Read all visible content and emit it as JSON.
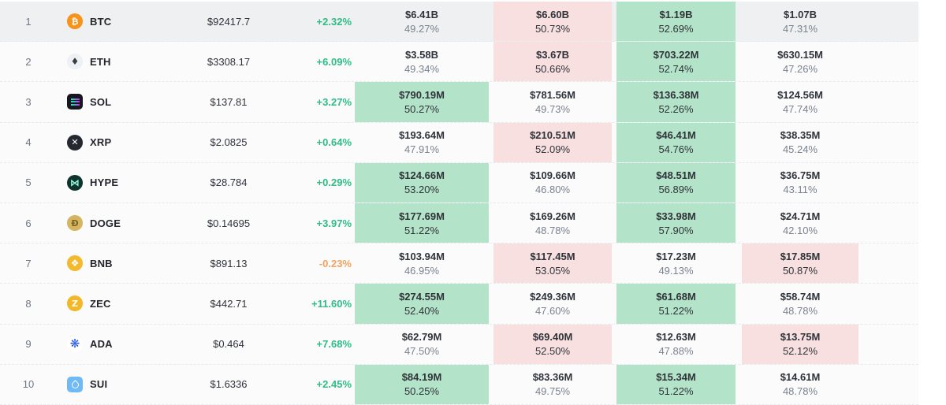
{
  "colors": {
    "green_highlight": "#b3e3c8",
    "red_highlight": "#f8dfe0",
    "row_selected": "#eef0f2",
    "up": "#2ebd85",
    "down": "#f0a35f"
  },
  "table": {
    "rows": [
      {
        "rank": "1",
        "symbol": "BTC",
        "price": "$92417.7",
        "change": "+2.32%",
        "selected": true,
        "icon": {
          "name": "btc-icon",
          "glyph": "₿",
          "bg": "#f7931a",
          "fg": "#ffffff",
          "shape": "circle"
        },
        "cells": [
          {
            "value": "$6.41B",
            "pct": "49.27%",
            "highlight": "none"
          },
          {
            "value": "$6.60B",
            "pct": "50.73%",
            "highlight": "red"
          },
          {
            "value": "$1.19B",
            "pct": "52.69%",
            "highlight": "green"
          },
          {
            "value": "$1.07B",
            "pct": "47.31%",
            "highlight": "none"
          }
        ]
      },
      {
        "rank": "2",
        "symbol": "ETH",
        "price": "$3308.17",
        "change": "+6.09%",
        "selected": false,
        "icon": {
          "name": "eth-icon",
          "glyph": "♦",
          "bg": "#edf0f4",
          "fg": "#3c3c3d",
          "shape": "circle"
        },
        "cells": [
          {
            "value": "$3.58B",
            "pct": "49.34%",
            "highlight": "none"
          },
          {
            "value": "$3.67B",
            "pct": "50.66%",
            "highlight": "red"
          },
          {
            "value": "$703.22M",
            "pct": "52.74%",
            "highlight": "green"
          },
          {
            "value": "$630.15M",
            "pct": "47.26%",
            "highlight": "none"
          }
        ]
      },
      {
        "rank": "3",
        "symbol": "SOL",
        "price": "$137.81",
        "change": "+3.27%",
        "selected": false,
        "icon": {
          "name": "sol-icon",
          "glyph": "",
          "bg": "#17171f",
          "fg": "#ffffff",
          "shape": "square"
        },
        "cells": [
          {
            "value": "$790.19M",
            "pct": "50.27%",
            "highlight": "green"
          },
          {
            "value": "$781.56M",
            "pct": "49.73%",
            "highlight": "none"
          },
          {
            "value": "$136.38M",
            "pct": "52.26%",
            "highlight": "green"
          },
          {
            "value": "$124.56M",
            "pct": "47.74%",
            "highlight": "none"
          }
        ]
      },
      {
        "rank": "4",
        "symbol": "XRP",
        "price": "$2.0825",
        "change": "+0.64%",
        "selected": false,
        "icon": {
          "name": "xrp-icon",
          "glyph": "✕",
          "bg": "#23292f",
          "fg": "#ffffff",
          "shape": "circle"
        },
        "cells": [
          {
            "value": "$193.64M",
            "pct": "47.91%",
            "highlight": "none"
          },
          {
            "value": "$210.51M",
            "pct": "52.09%",
            "highlight": "red"
          },
          {
            "value": "$46.41M",
            "pct": "54.76%",
            "highlight": "green"
          },
          {
            "value": "$38.35M",
            "pct": "45.24%",
            "highlight": "none"
          }
        ]
      },
      {
        "rank": "5",
        "symbol": "HYPE",
        "price": "$28.784",
        "change": "+0.29%",
        "selected": false,
        "icon": {
          "name": "hype-icon",
          "glyph": "⋈",
          "bg": "#0e342c",
          "fg": "#98fce4",
          "shape": "circle"
        },
        "cells": [
          {
            "value": "$124.66M",
            "pct": "53.20%",
            "highlight": "green"
          },
          {
            "value": "$109.66M",
            "pct": "46.80%",
            "highlight": "none"
          },
          {
            "value": "$48.51M",
            "pct": "56.89%",
            "highlight": "green"
          },
          {
            "value": "$36.75M",
            "pct": "43.11%",
            "highlight": "none"
          }
        ]
      },
      {
        "rank": "6",
        "symbol": "DOGE",
        "price": "$0.14695",
        "change": "+3.97%",
        "selected": false,
        "icon": {
          "name": "doge-icon",
          "glyph": "Ð",
          "bg": "#d5b55f",
          "fg": "#7d6226",
          "shape": "circle"
        },
        "cells": [
          {
            "value": "$177.69M",
            "pct": "51.22%",
            "highlight": "green"
          },
          {
            "value": "$169.26M",
            "pct": "48.78%",
            "highlight": "none"
          },
          {
            "value": "$33.98M",
            "pct": "57.90%",
            "highlight": "green"
          },
          {
            "value": "$24.71M",
            "pct": "42.10%",
            "highlight": "none"
          }
        ]
      },
      {
        "rank": "7",
        "symbol": "BNB",
        "price": "$891.13",
        "change": "-0.23%",
        "selected": false,
        "icon": {
          "name": "bnb-icon",
          "glyph": "❖",
          "bg": "#f3ba2f",
          "fg": "#ffffff",
          "shape": "circle"
        },
        "cells": [
          {
            "value": "$103.94M",
            "pct": "46.95%",
            "highlight": "none"
          },
          {
            "value": "$117.45M",
            "pct": "53.05%",
            "highlight": "red"
          },
          {
            "value": "$17.23M",
            "pct": "49.13%",
            "highlight": "none"
          },
          {
            "value": "$17.85M",
            "pct": "50.87%",
            "highlight": "red"
          }
        ]
      },
      {
        "rank": "8",
        "symbol": "ZEC",
        "price": "$442.71",
        "change": "+11.60%",
        "selected": false,
        "icon": {
          "name": "zec-icon",
          "glyph": "Z",
          "bg": "#f4b728",
          "fg": "#ffffff",
          "shape": "circle"
        },
        "cells": [
          {
            "value": "$274.55M",
            "pct": "52.40%",
            "highlight": "green"
          },
          {
            "value": "$249.36M",
            "pct": "47.60%",
            "highlight": "none"
          },
          {
            "value": "$61.68M",
            "pct": "51.22%",
            "highlight": "green"
          },
          {
            "value": "$58.74M",
            "pct": "48.78%",
            "highlight": "none"
          }
        ]
      },
      {
        "rank": "9",
        "symbol": "ADA",
        "price": "$0.464",
        "change": "+7.68%",
        "selected": false,
        "icon": {
          "name": "ada-icon",
          "glyph": "❋",
          "bg": "#ffffff",
          "fg": "#2257e7",
          "shape": "circle"
        },
        "cells": [
          {
            "value": "$62.79M",
            "pct": "47.50%",
            "highlight": "none"
          },
          {
            "value": "$69.40M",
            "pct": "52.50%",
            "highlight": "red"
          },
          {
            "value": "$12.63M",
            "pct": "47.88%",
            "highlight": "none"
          },
          {
            "value": "$13.75M",
            "pct": "52.12%",
            "highlight": "red"
          }
        ]
      },
      {
        "rank": "10",
        "symbol": "SUI",
        "price": "$1.6336",
        "change": "+2.45%",
        "selected": false,
        "icon": {
          "name": "sui-icon",
          "glyph": "",
          "bg": "#6fb9f5",
          "fg": "#ffffff",
          "shape": "square"
        },
        "cells": [
          {
            "value": "$84.19M",
            "pct": "50.25%",
            "highlight": "green"
          },
          {
            "value": "$83.36M",
            "pct": "49.75%",
            "highlight": "none"
          },
          {
            "value": "$15.34M",
            "pct": "51.22%",
            "highlight": "green"
          },
          {
            "value": "$14.61M",
            "pct": "48.78%",
            "highlight": "none"
          }
        ]
      }
    ]
  }
}
